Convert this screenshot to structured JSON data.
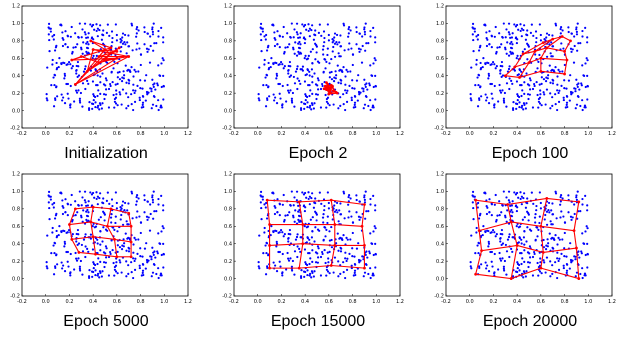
{
  "figure": {
    "panels": [
      {
        "caption": "Initialization"
      },
      {
        "caption": "Epoch 2"
      },
      {
        "caption": "Epoch 100"
      },
      {
        "caption": "Epoch 5000"
      },
      {
        "caption": "Epoch 15000"
      },
      {
        "caption": "Epoch 20000"
      }
    ]
  },
  "chart_data": [
    {
      "type": "scatter",
      "title": "Initialization",
      "xlim": [
        -0.2,
        1.2
      ],
      "ylim": [
        -0.2,
        1.2
      ],
      "xticks": [
        "-0.2",
        "0.0",
        "0.2",
        "0.4",
        "0.6",
        "0.8",
        "1.0",
        "1.2"
      ],
      "yticks": [
        "-0.2",
        "0.0",
        "0.2",
        "0.4",
        "0.6",
        "0.8",
        "1.0",
        "1.2"
      ],
      "grid": false,
      "series": [
        {
          "kind": "points",
          "color": "#0000ff",
          "distribution": "uniform",
          "x_range": [
            0,
            1
          ],
          "y_range": [
            0,
            1
          ],
          "count": 400
        },
        {
          "kind": "lattice",
          "color": "#ff0000",
          "rows": 4,
          "cols": 4,
          "nodes": [
            [
              [
                0.3,
                0.62
              ],
              [
                0.22,
                0.58
              ],
              [
                0.55,
                0.72
              ],
              [
                0.38,
                0.8
              ]
            ],
            [
              [
                0.45,
                0.55
              ],
              [
                0.6,
                0.6
              ],
              [
                0.25,
                0.3
              ],
              [
                0.5,
                0.7
              ]
            ],
            [
              [
                0.55,
                0.66
              ],
              [
                0.5,
                0.58
              ],
              [
                0.7,
                0.62
              ],
              [
                0.45,
                0.62
              ]
            ],
            [
              [
                0.62,
                0.72
              ],
              [
                0.35,
                0.45
              ],
              [
                0.4,
                0.7
              ],
              [
                0.6,
                0.68
              ]
            ]
          ]
        }
      ]
    },
    {
      "type": "scatter",
      "title": "Epoch 2",
      "xlim": [
        -0.2,
        1.2
      ],
      "ylim": [
        -0.2,
        1.2
      ],
      "xticks": [
        "-0.2",
        "0.0",
        "0.2",
        "0.4",
        "0.6",
        "0.8",
        "1.0",
        "1.2"
      ],
      "yticks": [
        "-0.2",
        "0.0",
        "0.2",
        "0.4",
        "0.6",
        "0.8",
        "1.0",
        "1.2"
      ],
      "grid": false,
      "series": [
        {
          "kind": "points",
          "color": "#0000ff",
          "distribution": "uniform",
          "x_range": [
            0,
            1
          ],
          "y_range": [
            0,
            1
          ],
          "count": 400
        },
        {
          "kind": "lattice",
          "color": "#ff0000",
          "rows": 4,
          "cols": 4,
          "nodes": [
            [
              [
                0.58,
                0.32
              ],
              [
                0.62,
                0.2
              ],
              [
                0.6,
                0.26
              ],
              [
                0.63,
                0.28
              ]
            ],
            [
              [
                0.59,
                0.3
              ],
              [
                0.61,
                0.24
              ],
              [
                0.57,
                0.28
              ],
              [
                0.64,
                0.22
              ]
            ],
            [
              [
                0.6,
                0.22
              ],
              [
                0.56,
                0.25
              ],
              [
                0.62,
                0.29
              ],
              [
                0.66,
                0.21
              ]
            ],
            [
              [
                0.58,
                0.24
              ],
              [
                0.63,
                0.27
              ],
              [
                0.6,
                0.19
              ],
              [
                0.67,
                0.2
              ]
            ]
          ]
        }
      ]
    },
    {
      "type": "scatter",
      "title": "Epoch 100",
      "xlim": [
        -0.2,
        1.2
      ],
      "ylim": [
        -0.2,
        1.2
      ],
      "xticks": [
        "-0.2",
        "0.0",
        "0.2",
        "0.4",
        "0.6",
        "0.8",
        "1.0",
        "1.2"
      ],
      "yticks": [
        "-0.2",
        "0.0",
        "0.2",
        "0.4",
        "0.6",
        "0.8",
        "1.0",
        "1.2"
      ],
      "grid": false,
      "series": [
        {
          "kind": "points",
          "color": "#0000ff",
          "distribution": "uniform",
          "x_range": [
            0,
            1
          ],
          "y_range": [
            0,
            1
          ],
          "count": 400
        },
        {
          "kind": "lattice",
          "color": "#ff0000",
          "rows": 4,
          "cols": 4,
          "nodes": [
            [
              [
                0.62,
                0.78
              ],
              [
                0.7,
                0.82
              ],
              [
                0.78,
                0.85
              ],
              [
                0.85,
                0.8
              ]
            ],
            [
              [
                0.45,
                0.65
              ],
              [
                0.55,
                0.68
              ],
              [
                0.65,
                0.72
              ],
              [
                0.8,
                0.68
              ]
            ],
            [
              [
                0.38,
                0.5
              ],
              [
                0.5,
                0.55
              ],
              [
                0.6,
                0.6
              ],
              [
                0.82,
                0.58
              ]
            ],
            [
              [
                0.3,
                0.4
              ],
              [
                0.42,
                0.38
              ],
              [
                0.6,
                0.45
              ],
              [
                0.8,
                0.42
              ]
            ]
          ]
        }
      ]
    },
    {
      "type": "scatter",
      "title": "Epoch 5000",
      "xlim": [
        -0.2,
        1.2
      ],
      "ylim": [
        -0.2,
        1.2
      ],
      "xticks": [
        "-0.2",
        "0.0",
        "0.2",
        "0.4",
        "0.6",
        "0.8",
        "1.0",
        "1.2"
      ],
      "yticks": [
        "-0.2",
        "0.0",
        "0.2",
        "0.4",
        "0.6",
        "0.8",
        "1.0",
        "1.2"
      ],
      "grid": false,
      "series": [
        {
          "kind": "points",
          "color": "#0000ff",
          "distribution": "uniform",
          "x_range": [
            0,
            1
          ],
          "y_range": [
            0,
            1
          ],
          "count": 400
        },
        {
          "kind": "lattice",
          "color": "#ff0000",
          "rows": 4,
          "cols": 4,
          "nodes": [
            [
              [
                0.25,
                0.8
              ],
              [
                0.4,
                0.82
              ],
              [
                0.55,
                0.8
              ],
              [
                0.7,
                0.75
              ]
            ],
            [
              [
                0.2,
                0.62
              ],
              [
                0.38,
                0.65
              ],
              [
                0.52,
                0.6
              ],
              [
                0.72,
                0.6
              ]
            ],
            [
              [
                0.22,
                0.45
              ],
              [
                0.4,
                0.48
              ],
              [
                0.58,
                0.45
              ],
              [
                0.72,
                0.42
              ]
            ],
            [
              [
                0.28,
                0.3
              ],
              [
                0.42,
                0.28
              ],
              [
                0.6,
                0.25
              ],
              [
                0.72,
                0.25
              ]
            ]
          ]
        }
      ]
    },
    {
      "type": "scatter",
      "title": "Epoch 15000",
      "xlim": [
        -0.2,
        1.2
      ],
      "ylim": [
        -0.2,
        1.2
      ],
      "xticks": [
        "-0.2",
        "0.0",
        "0.2",
        "0.4",
        "0.6",
        "0.8",
        "1.0",
        "1.2"
      ],
      "yticks": [
        "-0.2",
        "0.0",
        "0.2",
        "0.4",
        "0.6",
        "0.8",
        "1.0",
        "1.2"
      ],
      "grid": false,
      "series": [
        {
          "kind": "points",
          "color": "#0000ff",
          "distribution": "uniform",
          "x_range": [
            0,
            1
          ],
          "y_range": [
            0,
            1
          ],
          "count": 400
        },
        {
          "kind": "lattice",
          "color": "#ff0000",
          "rows": 4,
          "cols": 4,
          "nodes": [
            [
              [
                0.08,
                0.9
              ],
              [
                0.35,
                0.88
              ],
              [
                0.62,
                0.9
              ],
              [
                0.9,
                0.85
              ]
            ],
            [
              [
                0.1,
                0.62
              ],
              [
                0.38,
                0.62
              ],
              [
                0.65,
                0.62
              ],
              [
                0.88,
                0.6
              ]
            ],
            [
              [
                0.1,
                0.38
              ],
              [
                0.38,
                0.4
              ],
              [
                0.65,
                0.38
              ],
              [
                0.9,
                0.38
              ]
            ],
            [
              [
                0.1,
                0.12
              ],
              [
                0.35,
                0.12
              ],
              [
                0.62,
                0.15
              ],
              [
                0.9,
                0.12
              ]
            ]
          ]
        }
      ]
    },
    {
      "type": "scatter",
      "title": "Epoch 20000",
      "xlim": [
        -0.2,
        1.2
      ],
      "ylim": [
        -0.2,
        1.2
      ],
      "xticks": [
        "-0.2",
        "0.0",
        "0.2",
        "0.4",
        "0.6",
        "0.8",
        "1.0",
        "1.2"
      ],
      "yticks": [
        "-0.2",
        "0.0",
        "0.2",
        "0.4",
        "0.6",
        "0.8",
        "1.0",
        "1.2"
      ],
      "grid": false,
      "series": [
        {
          "kind": "points",
          "color": "#0000ff",
          "distribution": "uniform",
          "x_range": [
            0,
            1
          ],
          "y_range": [
            0,
            1
          ],
          "count": 400
        },
        {
          "kind": "lattice",
          "color": "#ff0000",
          "rows": 4,
          "cols": 4,
          "nodes": [
            [
              [
                0.05,
                0.9
              ],
              [
                0.32,
                0.85
              ],
              [
                0.65,
                0.92
              ],
              [
                0.92,
                0.88
              ]
            ],
            [
              [
                0.08,
                0.55
              ],
              [
                0.35,
                0.65
              ],
              [
                0.6,
                0.6
              ],
              [
                0.88,
                0.55
              ]
            ],
            [
              [
                0.1,
                0.32
              ],
              [
                0.4,
                0.38
              ],
              [
                0.62,
                0.3
              ],
              [
                0.9,
                0.35
              ]
            ],
            [
              [
                0.05,
                0.05
              ],
              [
                0.35,
                0.0
              ],
              [
                0.6,
                0.12
              ],
              [
                0.92,
                0.0
              ]
            ]
          ]
        }
      ]
    }
  ]
}
